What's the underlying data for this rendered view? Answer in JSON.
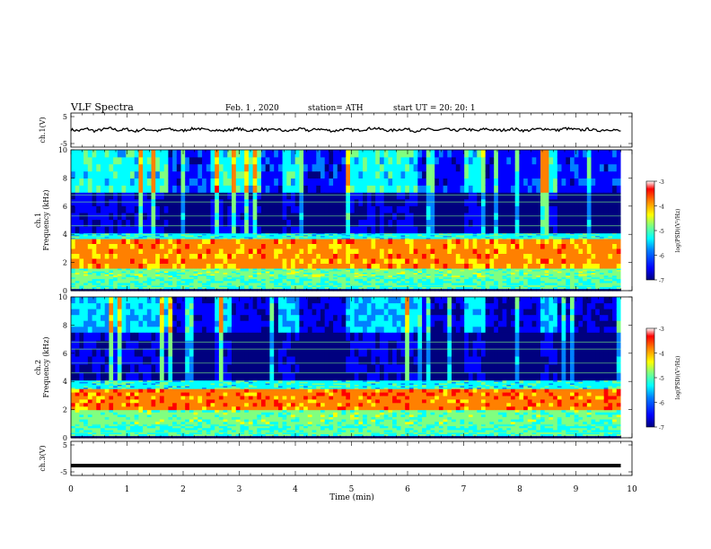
{
  "header": {
    "title": "VLF  Spectra",
    "date": "Feb. 1  , 2020",
    "station": "station= ATH",
    "start": "start  UT  =   20: 20: 1"
  },
  "colors": {
    "colormap": [
      "#00007f",
      "#0000ff",
      "#0080ff",
      "#00ffff",
      "#80ff80",
      "#ffff00",
      "#ff8000",
      "#ff0000",
      "#ffffff"
    ]
  },
  "chart_data": [
    {
      "type": "line",
      "name": "ch1-waveform",
      "ylabel": "ch.1(V)",
      "ylim": [
        -5,
        5
      ],
      "yticks": [
        "5",
        "-5"
      ],
      "x_range": [
        0,
        9.8
      ],
      "values": [
        0.1,
        -0.2,
        0.4,
        -0.3,
        0.2,
        0.5,
        -0.1,
        0.3,
        -0.4,
        0.2,
        0.1,
        -0.3,
        0.4,
        0.0,
        -0.2,
        0.3,
        0.5,
        -0.1,
        0.2,
        -0.3,
        0.1,
        0.4,
        -0.2,
        0.0,
        0.3,
        -0.1,
        0.2,
        -0.4,
        0.1,
        0.3,
        -0.2,
        0.4,
        0.0,
        -0.3,
        0.2,
        0.1,
        -0.1,
        0.3,
        0.6,
        0.2,
        -0.2,
        0.1,
        0.4,
        -0.3,
        0.0,
        0.2,
        -0.1,
        0.3,
        -0.2,
        0.1,
        0.2,
        -0.3,
        0.4,
        0.0,
        -0.1,
        0.3,
        0.2,
        -0.2,
        0.1,
        0.4,
        0.3,
        -0.1,
        0.5,
        0.2,
        0.0,
        0.3,
        -0.2,
        0.1,
        0.2,
        -0.4
      ]
    },
    {
      "type": "heatmap",
      "name": "ch1-spectrogram",
      "ylabel": "ch.1\nFrequency  (kHz)",
      "ylim": [
        0,
        10
      ],
      "yticks": [
        "0",
        "2",
        "4",
        "6",
        "8",
        "10"
      ],
      "x_range": [
        0,
        9.8
      ],
      "colorbar": {
        "label": "log(PSD)(V²/Hz)",
        "range": [
          -7,
          -3
        ],
        "ticks": [
          "-3",
          "-4",
          "-5",
          "-6",
          "-7"
        ]
      },
      "bands": [
        {
          "f": [
            0,
            0.15
          ],
          "level": 0.0
        },
        {
          "f": [
            0.15,
            1.0
          ],
          "level": 0.5
        },
        {
          "f": [
            1.0,
            1.6
          ],
          "level": 0.55
        },
        {
          "f": [
            1.6,
            3.7
          ],
          "level": 0.8
        },
        {
          "f": [
            3.7,
            4.1
          ],
          "level": 0.45
        },
        {
          "f": [
            4.1,
            7.0
          ],
          "level": 0.15
        },
        {
          "f": [
            7.0,
            10.0
          ],
          "level": 0.45
        }
      ],
      "dark_blocks_min": [
        [
          1.7,
          2.5
        ],
        [
          3.4,
          3.8
        ],
        [
          4.1,
          4.9
        ],
        [
          6.2,
          7.0
        ],
        [
          7.3,
          8.4
        ],
        [
          8.7,
          9.8
        ]
      ]
    },
    {
      "type": "heatmap",
      "name": "ch2-spectrogram",
      "ylabel": "ch.2\nFrequency  (kHz)",
      "ylim": [
        0,
        10
      ],
      "yticks": [
        "0",
        "2",
        "4",
        "6",
        "8",
        "10"
      ],
      "x_range": [
        0,
        9.8
      ],
      "colorbar": {
        "label": "log(PSD)(V²/Hz)",
        "range": [
          -7,
          -3
        ],
        "ticks": [
          "-3",
          "-4",
          "-5",
          "-6",
          "-7"
        ]
      },
      "bands": [
        {
          "f": [
            0,
            0.15
          ],
          "level": 0.0
        },
        {
          "f": [
            0.15,
            1.0
          ],
          "level": 0.5
        },
        {
          "f": [
            1.0,
            2.0
          ],
          "level": 0.55
        },
        {
          "f": [
            2.0,
            3.5
          ],
          "level": 0.82
        },
        {
          "f": [
            3.5,
            4.1
          ],
          "level": 0.45
        },
        {
          "f": [
            4.1,
            7.5
          ],
          "level": 0.15
        },
        {
          "f": [
            7.5,
            10.0
          ],
          "level": 0.4
        }
      ],
      "dark_blocks_min": [
        [
          1.8,
          2.6
        ],
        [
          2.9,
          3.7
        ],
        [
          4.1,
          4.9
        ],
        [
          6.2,
          7.0
        ],
        [
          7.4,
          8.4
        ],
        [
          8.7,
          9.8
        ]
      ]
    },
    {
      "type": "line",
      "name": "ch3-waveform",
      "ylabel": "ch.3(V)",
      "ylim": [
        -5,
        5
      ],
      "yticks": [
        "5",
        "-5"
      ],
      "x_range": [
        0,
        9.8
      ],
      "values": [
        -2.1,
        -2.1,
        -2.1,
        -2.1,
        -2.1,
        -2.1,
        -2.1,
        -2.1,
        -2.1,
        -2.1,
        -2.1,
        -2.1,
        -2.1,
        -2.1,
        -2.1,
        -2.1,
        -2.1,
        -2.1,
        -2.1,
        -2.1
      ]
    }
  ],
  "xaxis": {
    "label": "Time  (min)",
    "range": [
      0,
      10
    ],
    "ticks": [
      "0",
      "1",
      "2",
      "3",
      "4",
      "5",
      "6",
      "7",
      "8",
      "9",
      "10"
    ]
  }
}
